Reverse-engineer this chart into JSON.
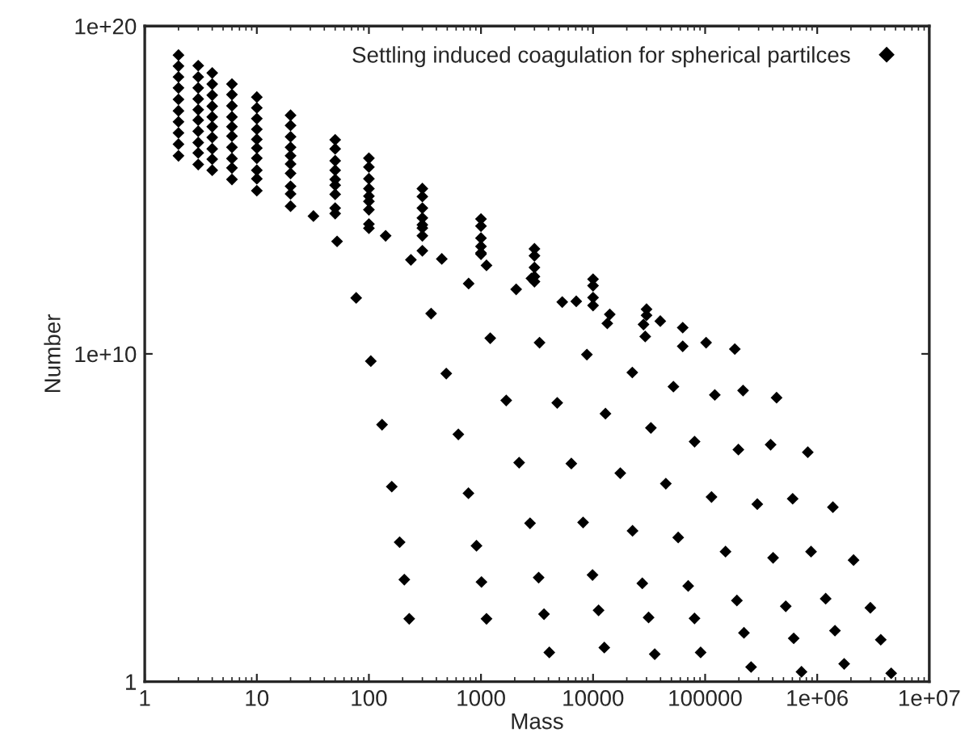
{
  "chart_data": {
    "type": "scatter",
    "xlabel": "Mass",
    "ylabel": "Number",
    "log": "xy",
    "grid": false,
    "legend": "top right",
    "marker": "diamond",
    "xlim": [
      1,
      10000000
    ],
    "ylim": [
      1,
      1e+20
    ],
    "xticks": [
      1,
      10,
      100,
      1000,
      10000,
      100000,
      {
        "value": 1000000,
        "label": "1e+06"
      },
      {
        "value": 10000000,
        "label": "1e+07"
      }
    ],
    "yticks": [
      1,
      {
        "value": 10000000000,
        "label": "1e+10"
      },
      {
        "value": 1e+20,
        "label": "1e+20"
      }
    ],
    "series": [
      {
        "name": "Settling induced coagulation for spherical partilces",
        "color": "#000000",
        "x": [
          2,
          3,
          4,
          6,
          10,
          20,
          32,
          52,
          77,
          104,
          131,
          160,
          188,
          207,
          229,
          2,
          3,
          4,
          6,
          10,
          20,
          50,
          100,
          141,
          237,
          359,
          490,
          628,
          773,
          912,
          1010,
          1120,
          2,
          3,
          4,
          6,
          10,
          20,
          50,
          100,
          300,
          447,
          776,
          1210,
          1680,
          2190,
          2740,
          3270,
          3650,
          4070,
          2,
          3,
          4,
          6,
          10,
          20,
          50,
          100,
          300,
          1120,
          2060,
          3330,
          4790,
          6400,
          8150,
          9890,
          11200,
          12600,
          2,
          3,
          4,
          6,
          10,
          20,
          50,
          100,
          300,
          1000,
          2820,
          5310,
          8810,
          12900,
          17500,
          22500,
          27500,
          31300,
          35500,
          2,
          3,
          4,
          6,
          10,
          20,
          50,
          100,
          300,
          1000,
          3000,
          7080,
          13400,
          22400,
          32800,
          44600,
          57500,
          70600,
          80400,
          91200,
          2,
          3,
          4,
          6,
          10,
          20,
          50,
          100,
          300,
          1000,
          3000,
          10000,
          14100,
          29200,
          52100,
          80500,
          114000,
          152000,
          192000,
          222000,
          257000,
          2,
          3,
          4,
          6,
          10,
          20,
          50,
          100,
          300,
          1000,
          3000,
          10000,
          28200,
          63100,
          122000,
          198000,
          292000,
          404000,
          524000,
          617000,
          724000,
          2,
          3,
          4,
          6,
          10,
          20,
          50,
          100,
          300,
          1000,
          3000,
          10000,
          30000,
          39800,
          102000,
          218000,
          384000,
          604000,
          881000,
          1190000,
          1440000,
          1740000,
          2,
          3,
          4,
          6,
          10,
          20,
          50,
          100,
          300,
          1000,
          3000,
          10000,
          30000,
          63100,
          184000,
          434000,
          824000,
          1380000,
          2110000,
          2980000,
          3690000,
          4570000
        ],
        "values": [
          1.1e+16,
          6000000000000000.0,
          4000000000000000.0,
          2100000000000000.0,
          950000000000000.0,
          320000000000000.0,
          160000000000000.0,
          27000000000000.0,
          510000000000.0,
          6000000000.0,
          69000000.0,
          890000.0,
          18000.0,
          1300.0,
          83,
          2.5e+16,
          1.35e+16,
          8700000000000000.0,
          4700000000000000.0,
          2200000000000000.0,
          760000000000000.0,
          190000000000000.0,
          68000000000000.0,
          40000000000000.0,
          7400000000000.0,
          170000000000.0,
          2500000000.0,
          35000000.0,
          560000.0,
          14000.0,
          1100.0,
          83,
          5.5e+16,
          2.8e+16,
          1.8e+16,
          9100000000000000.0,
          4000000000000000.0,
          1300000000000000.0,
          280000000000000.0,
          91000000000000.0,
          14000000000000.0,
          7900000000000.0,
          1400000000000.0,
          30000000000.0,
          380000000.0,
          4800000.0,
          68000.0,
          1500.0,
          115,
          7.8,
          1.2e+17,
          6.2e+16,
          4e+16,
          2e+16,
          9300000000000000.0,
          3200000000000000.0,
          740000000000000.0,
          250000000000000.0,
          40000000000000.0,
          5000000000000.0,
          930000000000.0,
          22000000000.0,
          320000000.0,
          4500000.0,
          72000.0,
          1800.0,
          150,
          11,
          2.6e+17,
          1.35e+17,
          8.5e+16,
          4.4e+16,
          1.9e+16,
          6200000000000000.0,
          1400000000000000.0,
          450000000000000.0,
          69000000000000.0,
          11000000000000.0,
          2000000000000.0,
          380000000000.0,
          9500000000.0,
          150000000.0,
          2300000.0,
          40000.0,
          1000.0,
          91,
          6.9,
          5.8e+17,
          2.8e+17,
          1.7e+17,
          8.5e+16,
          3.5e+16,
          1.1e+16,
          2100000000000000.0,
          650000000000000.0,
          87000000000000.0,
          12000000000000.0,
          1600000000000.0,
          400000000000.0,
          85000000000.0,
          2700000000.0,
          55000000.0,
          1100000.0,
          25000.0,
          830,
          85,
          7.8,
          1.3e+18,
          6e+17,
          3.6e+17,
          1.7e+17,
          7.1e+16,
          2e+16,
          4000000000000000.0,
          1100000000000000.0,
          140000000000000.0,
          19000000000000.0,
          2300000000000.0,
          300000000000.0,
          160000000000.0,
          34000000000.0,
          1000000000.0,
          21000000.0,
          430000.0,
          9300.0,
          300,
          31,
          2.8,
          2.8e+18,
          1.3e+18,
          7.8e+17,
          3.7e+17,
          1.5e+17,
          4.2e+16,
          7800000000000000.0,
          2200000000000000.0,
          280000000000000.0,
          34000000000000.0,
          4300000000000.0,
          520000000000.0,
          79000000000.0,
          17000000000.0,
          560000000.0,
          12000000.0,
          260000.0,
          6000.0,
          200,
          21,
          2.0,
          6e+18,
          2.8e+18,
          1.7e+18,
          8.1e+17,
          3.2e+17,
          9.3e+16,
          1.8e+16,
          5000000000000000.0,
          630000000000000.0,
          79000000000000.0,
          9800000000000.0,
          1200000000000.0,
          150000000000.0,
          100000000000.0,
          22000000000.0,
          760000000.0,
          17000000.0,
          380000.0,
          9300.0,
          340,
          36,
          3.5,
          1.3e+19,
          6.2e+18,
          3.7e+18,
          1.7e+18,
          6.8e+17,
          1.9e+17,
          3.4e+16,
          9300000000000000.0,
          1100000000000000.0,
          130000000000000.0,
          16000000000000.0,
          1900000000000.0,
          230000000000.0,
          63000000000.0,
          14000000000.0,
          460000000.0,
          10000000.0,
          210000.0,
          5100.0,
          180,
          19,
          1.8
        ]
      }
    ]
  }
}
